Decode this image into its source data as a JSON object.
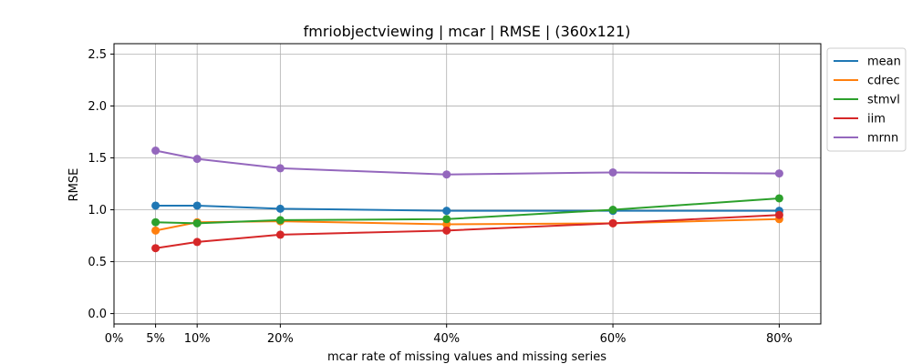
{
  "chart_data": {
    "type": "line",
    "title": "fmriobjectviewing | mcar | RMSE | (360x121)",
    "xlabel": "mcar rate of missing values and missing series",
    "ylabel": "RMSE",
    "x": [
      5,
      10,
      20,
      40,
      60,
      80
    ],
    "xlim": [
      0,
      85
    ],
    "ylim": [
      -0.1,
      2.6
    ],
    "xticks": [
      0,
      5,
      10,
      20,
      40,
      60,
      80
    ],
    "xtick_labels": [
      "0%",
      "5%",
      "10%",
      "20%",
      "40%",
      "60%",
      "80%"
    ],
    "yticks": [
      0.0,
      0.5,
      1.0,
      1.5,
      2.0,
      2.5
    ],
    "ytick_labels": [
      "0.0",
      "0.5",
      "1.0",
      "1.5",
      "2.0",
      "2.5"
    ],
    "grid": true,
    "legend_position": "outside-top-right",
    "series": [
      {
        "name": "mean",
        "color": "#1f77b4",
        "values": [
          1.04,
          1.04,
          1.01,
          0.99,
          0.99,
          0.99
        ]
      },
      {
        "name": "cdrec",
        "color": "#ff7f0e",
        "values": [
          0.8,
          0.88,
          0.89,
          0.86,
          0.87,
          0.91
        ]
      },
      {
        "name": "stmvl",
        "color": "#2ca02c",
        "values": [
          0.88,
          0.87,
          0.9,
          0.91,
          1.0,
          1.11
        ]
      },
      {
        "name": "iim",
        "color": "#d62728",
        "values": [
          0.63,
          0.69,
          0.76,
          0.8,
          0.87,
          0.95
        ]
      },
      {
        "name": "mrnn",
        "color": "#9467bd",
        "values": [
          1.57,
          1.49,
          1.4,
          1.34,
          1.36,
          1.35
        ]
      }
    ]
  }
}
